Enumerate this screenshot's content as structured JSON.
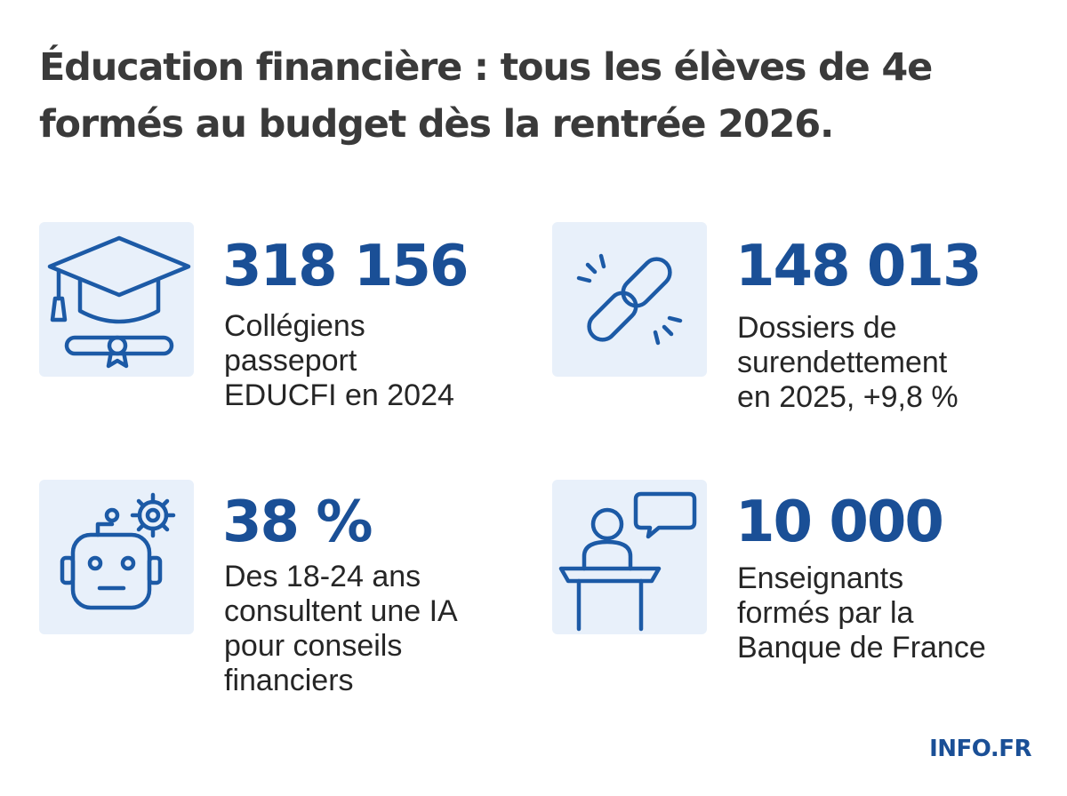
{
  "title": {
    "line1": "Éducation financière : tous les élèves de 4e",
    "line2": "formés au budget dès la rentrée 2026."
  },
  "stats": [
    {
      "icon": "graduation-cap-icon",
      "value": "318 156",
      "label_lines": [
        "Collégiens",
        "passeport",
        "EDUCFI en 2024"
      ]
    },
    {
      "icon": "broken-chain-link-icon",
      "value": "148 013",
      "label_lines": [
        "Dossiers de",
        "surendettement",
        "en 2025, +9,8 %"
      ]
    },
    {
      "icon": "robot-gear-icon",
      "value": "38 %",
      "label_lines": [
        "Des 18-24 ans",
        "consultent une IA",
        "pour conseils",
        "financiers"
      ]
    },
    {
      "icon": "teacher-podium-speech-icon",
      "value": "10 000",
      "label_lines": [
        "Enseignants",
        "formés par la",
        "Banque de France"
      ]
    }
  ],
  "brand": "INFO.FR",
  "colors": {
    "accent": "#1a4f96",
    "icon_stroke": "#1c5aa6",
    "icon_bg": "#e8f0fa",
    "title": "#3a3a3a",
    "text": "#262626"
  }
}
